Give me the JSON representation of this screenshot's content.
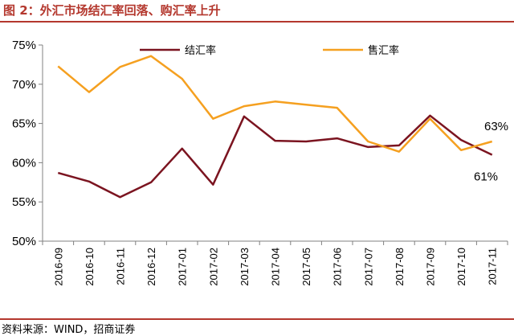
{
  "header": {
    "title": "图 2：外汇市场结汇率回落、购汇率上升"
  },
  "footer": {
    "source": "资料来源：WIND，招商证券"
  },
  "colors": {
    "accent": "#b4382e",
    "settlement": "#7b1420",
    "purchase": "#f5a020"
  },
  "chart_data": {
    "type": "line",
    "categories": [
      "2016-09",
      "2016-10",
      "2016-11",
      "2016-12",
      "2017-01",
      "2017-02",
      "2017-03",
      "2017-04",
      "2017-05",
      "2017-06",
      "2017-07",
      "2017-08",
      "2017-09",
      "2017-10",
      "2017-11"
    ],
    "series": [
      {
        "name": "结汇率",
        "color": "#7b1420",
        "values": [
          58.7,
          57.6,
          55.6,
          57.5,
          61.8,
          57.2,
          65.9,
          62.8,
          62.7,
          63.1,
          62.0,
          62.2,
          66.0,
          62.9,
          61.0
        ]
      },
      {
        "name": "售汇率",
        "color": "#f5a020",
        "values": [
          72.3,
          69.0,
          72.2,
          73.6,
          70.7,
          65.6,
          67.2,
          67.8,
          67.4,
          67.0,
          62.7,
          61.4,
          65.6,
          61.6,
          62.7
        ]
      }
    ],
    "ylim": [
      50,
      75
    ],
    "yticks": [
      "50%",
      "55%",
      "60%",
      "65%",
      "70%",
      "75%"
    ],
    "legend": "top",
    "annotations": [
      "63%",
      "61%"
    ],
    "xlabel": "",
    "ylabel": ""
  }
}
